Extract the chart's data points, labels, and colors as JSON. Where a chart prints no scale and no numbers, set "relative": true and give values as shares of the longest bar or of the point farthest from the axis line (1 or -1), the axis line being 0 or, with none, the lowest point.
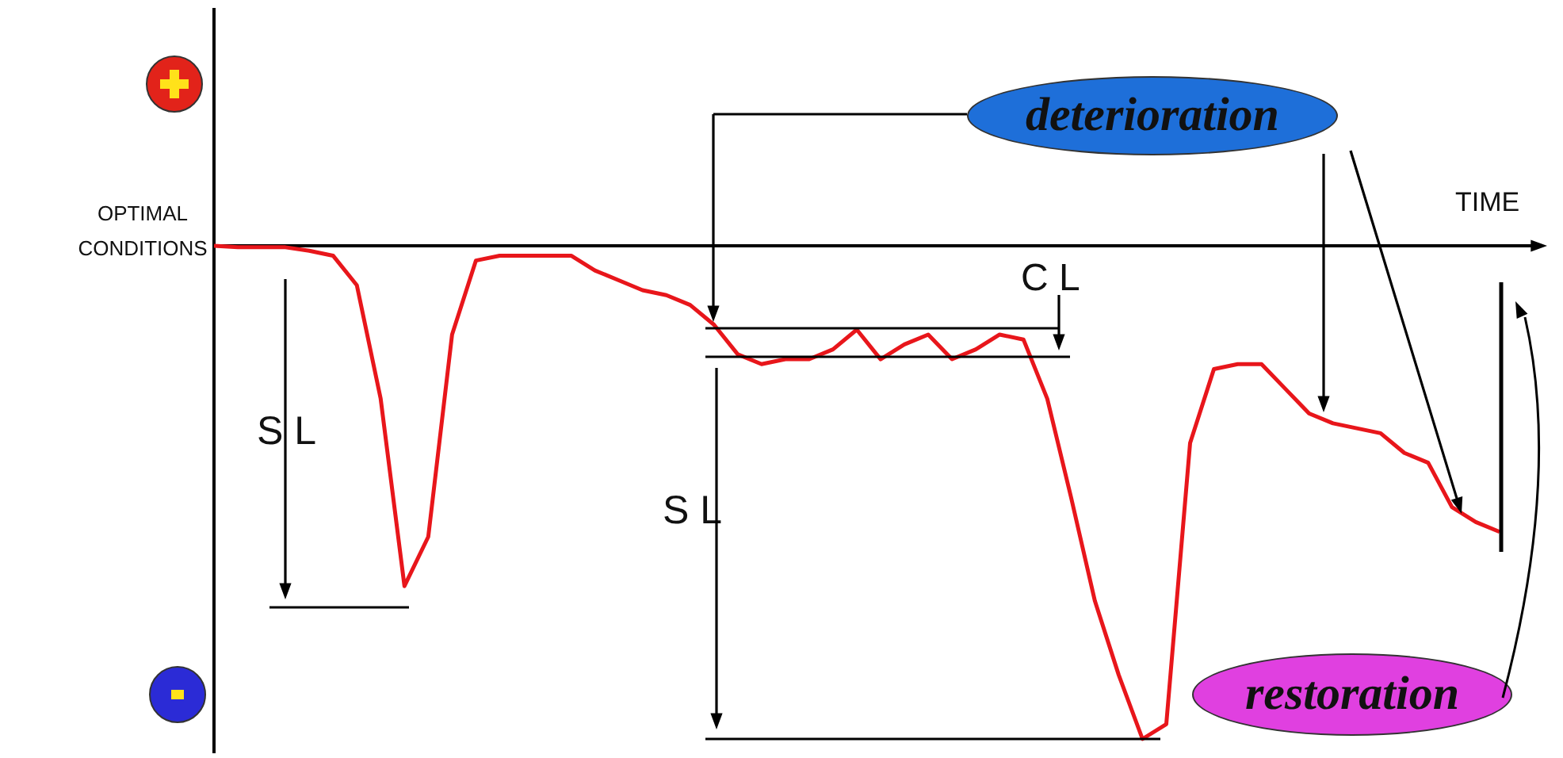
{
  "chart_data": {
    "type": "line",
    "relative": true,
    "color": "#e8161b",
    "legend": false,
    "tick_labels": false,
    "marker": "none",
    "line_style": "solid",
    "categories": [
      null,
      null,
      null,
      null,
      null,
      null,
      null,
      null,
      null,
      null,
      null,
      null,
      null,
      null,
      null,
      null,
      null,
      null,
      null,
      null,
      null,
      null,
      null,
      null,
      null,
      null,
      null,
      null,
      null,
      null,
      null,
      null,
      null,
      null,
      null,
      null,
      null,
      null,
      null,
      null,
      null,
      null,
      null,
      null,
      null,
      null,
      null,
      null,
      null,
      null,
      null,
      null,
      null,
      null,
      null
    ],
    "values": [
      0,
      -0.003,
      -0.003,
      -0.003,
      -0.01,
      -0.02,
      -0.08,
      -0.31,
      -0.69,
      -0.59,
      -0.18,
      -0.03,
      -0.02,
      -0.02,
      -0.02,
      -0.02,
      -0.05,
      -0.07,
      -0.09,
      -0.1,
      -0.12,
      -0.16,
      -0.22,
      -0.24,
      -0.23,
      -0.23,
      -0.21,
      -0.17,
      -0.23,
      -0.2,
      -0.18,
      -0.23,
      -0.21,
      -0.18,
      -0.19,
      -0.31,
      -0.51,
      -0.72,
      -0.87,
      -1,
      -0.97,
      -0.4,
      -0.25,
      -0.24,
      -0.24,
      -0.29,
      -0.34,
      -0.36,
      -0.37,
      -0.38,
      -0.42,
      -0.44,
      -0.53,
      -0.56,
      -0.58
    ],
    "annotations": [
      "OPTIMAL CONDITIONS",
      "TIME",
      "S L",
      "S L",
      "C L",
      "deterioration",
      "restoration"
    ]
  }
}
